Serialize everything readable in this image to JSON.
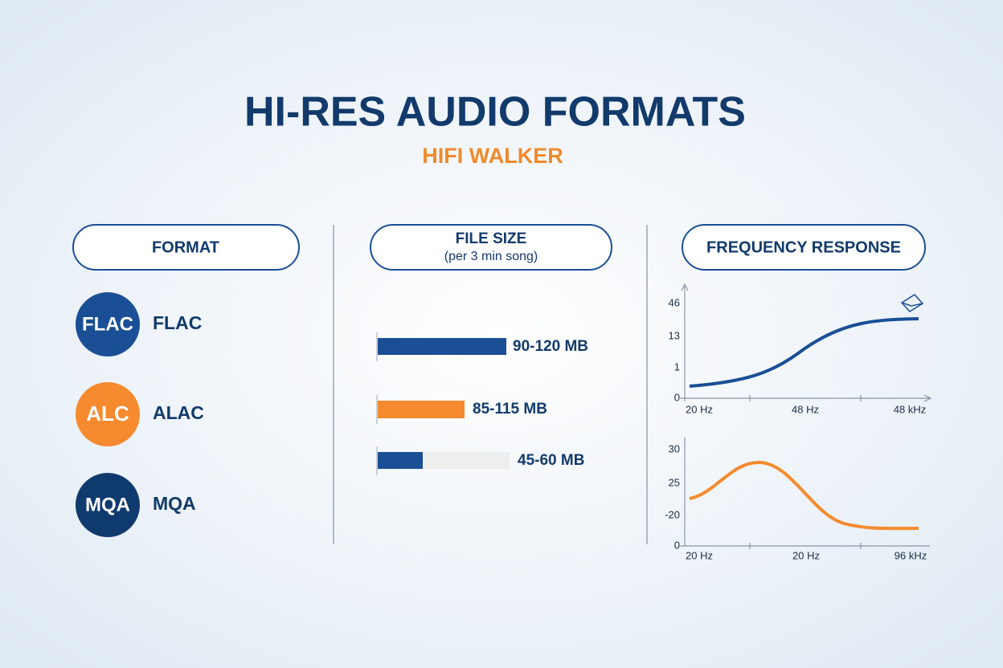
{
  "header": {
    "title": "HI-RES AUDIO FORMATS",
    "subtitle": "HIFI WALKER"
  },
  "columns": {
    "format": {
      "heading": "FORMAT"
    },
    "file_size": {
      "heading": "FILE SIZE",
      "subheading": "(per 3 min song)"
    },
    "frequency": {
      "heading": "FREQUENCY RESPONSE"
    }
  },
  "formats": [
    {
      "badge": "FLAC",
      "name": "FLAC",
      "size": "90-120 MB"
    },
    {
      "badge": "ALC",
      "name": "ALAC",
      "size": "85-115 MB"
    },
    {
      "badge": "MQA",
      "name": "MQA",
      "size": "45-60 MB"
    }
  ],
  "graphs": [
    {
      "y_labels": [
        "46",
        "13",
        "1",
        "0"
      ],
      "x_labels": [
        "20 Hz",
        "48 Hz",
        "48 kHz"
      ]
    },
    {
      "y_labels": [
        "30",
        "25",
        "-20",
        "0"
      ],
      "x_labels": [
        "20 Hz",
        "20 Hz",
        "96 kHz"
      ]
    }
  ]
}
